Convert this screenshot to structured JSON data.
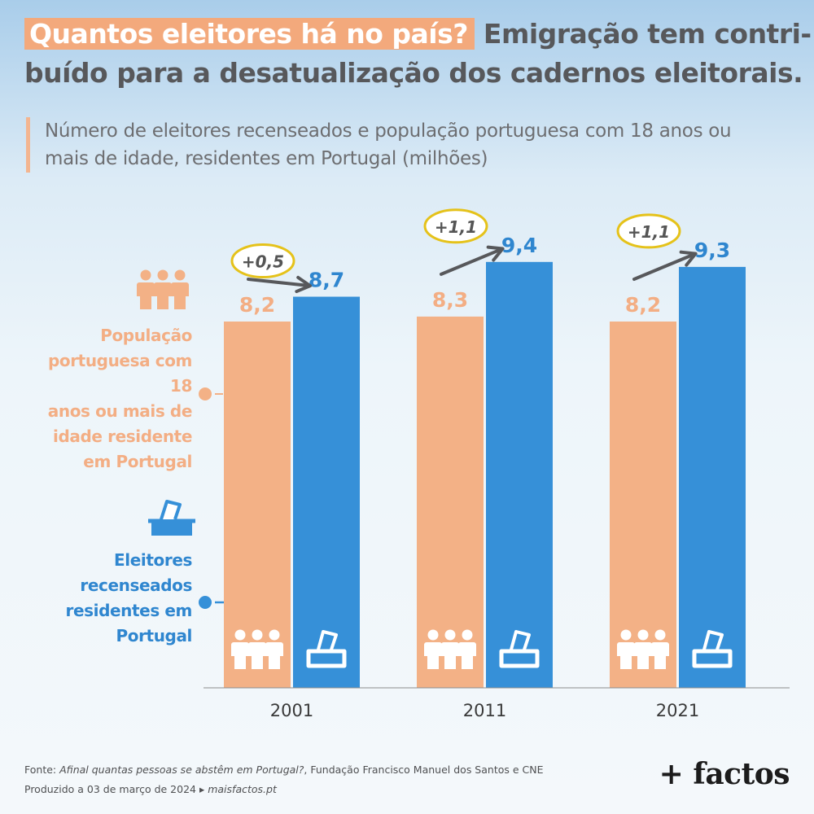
{
  "title": {
    "highlight": "Quantos eleitores há no país?",
    "rest_line1": "Emigração tem contri-",
    "line2": "buído para a desatualização dos cadernos eleitorais."
  },
  "subtitle_line1": "Número de eleitores recenseados e população portuguesa com 18 anos ou",
  "subtitle_line2": "mais de idade, residentes em Portugal (milhões)",
  "legend": {
    "population_lines": [
      "População",
      "portuguesa com 18",
      "anos ou mais de",
      "idade residente",
      "em Portugal"
    ],
    "voters_lines": [
      "Eleitores",
      "recenseados",
      "residentes em",
      "Portugal"
    ]
  },
  "colors": {
    "population": "#f3b186",
    "voters": "#3690d8",
    "difference_circle": "#e5c21a",
    "arrow": "#57585b"
  },
  "chart_data": {
    "type": "bar",
    "categories": [
      "2001",
      "2011",
      "2021"
    ],
    "series": [
      {
        "name": "População portuguesa com 18 anos ou mais de idade residente em Portugal",
        "values": [
          8.2,
          8.3,
          8.2
        ],
        "labels": [
          "8,2",
          "8,3",
          "8,2"
        ]
      },
      {
        "name": "Eleitores recenseados residentes em Portugal",
        "values": [
          8.7,
          9.4,
          9.3
        ],
        "labels": [
          "8,7",
          "9,4",
          "9,3"
        ]
      }
    ],
    "differences": [
      "+0,5",
      "+1,1",
      "+1,1"
    ],
    "ylabel": "milhões",
    "ylim": [
      0,
      9.4
    ]
  },
  "footer": {
    "source_prefix": "Fonte: ",
    "source_title": "Afinal quantas pessoas se abstêm em Portugal?",
    "source_suffix": ", Fundação Francisco Manuel dos Santos e CNE",
    "produced_prefix": "Produzido a 03 de março de 2024 ▸ ",
    "produced_site": "maisfactos.pt"
  },
  "logo": "+ factos"
}
